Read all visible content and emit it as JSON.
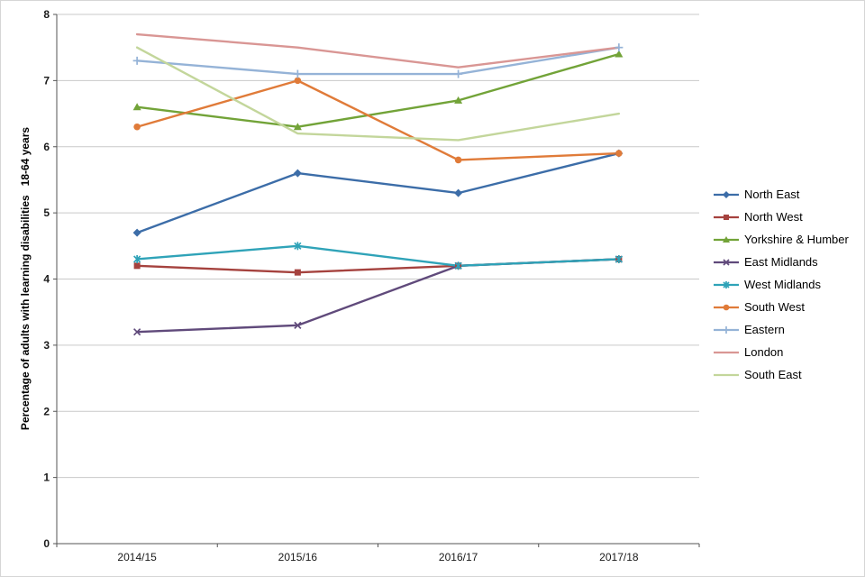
{
  "chart_data": {
    "type": "line",
    "categories": [
      "2014/15",
      "2015/16",
      "2016/17",
      "2017/18"
    ],
    "series": [
      {
        "name": "North East",
        "values": [
          4.7,
          5.6,
          5.3,
          5.9
        ],
        "color": "#3C6DA8",
        "marker": "diamond"
      },
      {
        "name": "North West",
        "values": [
          4.2,
          4.1,
          4.2,
          4.3
        ],
        "color": "#A5423E",
        "marker": "square"
      },
      {
        "name": "Yorkshire & Humber",
        "values": [
          6.6,
          6.3,
          6.7,
          7.4
        ],
        "color": "#72A338",
        "marker": "triangle"
      },
      {
        "name": "East Midlands",
        "values": [
          3.2,
          3.3,
          4.2,
          4.3
        ],
        "color": "#604A7B",
        "marker": "x"
      },
      {
        "name": "West Midlands",
        "values": [
          4.3,
          4.5,
          4.2,
          4.3
        ],
        "color": "#2FA3B8",
        "marker": "asterisk"
      },
      {
        "name": "South West",
        "values": [
          6.3,
          7.0,
          5.8,
          5.9
        ],
        "color": "#E07B39",
        "marker": "circle"
      },
      {
        "name": "Eastern",
        "values": [
          7.3,
          7.1,
          7.1,
          7.5
        ],
        "color": "#95B3D7",
        "marker": "plus"
      },
      {
        "name": "London",
        "values": [
          7.7,
          7.5,
          7.2,
          7.5
        ],
        "color": "#D99694",
        "marker": "none"
      },
      {
        "name": "South East",
        "values": [
          7.5,
          6.2,
          6.1,
          6.5
        ],
        "color": "#C3D69B",
        "marker": "none"
      }
    ],
    "title": "",
    "xlabel": "",
    "ylabel": "Percentage of adults with learning disabilities   18-64 years",
    "ylim": [
      0,
      8
    ],
    "yticks": [
      0,
      1,
      2,
      3,
      4,
      5,
      6,
      7,
      8
    ],
    "grid": true,
    "legend_position": "right",
    "grid_color": "#c9c9c9",
    "axis_color": "#555555",
    "background": "#ffffff"
  }
}
